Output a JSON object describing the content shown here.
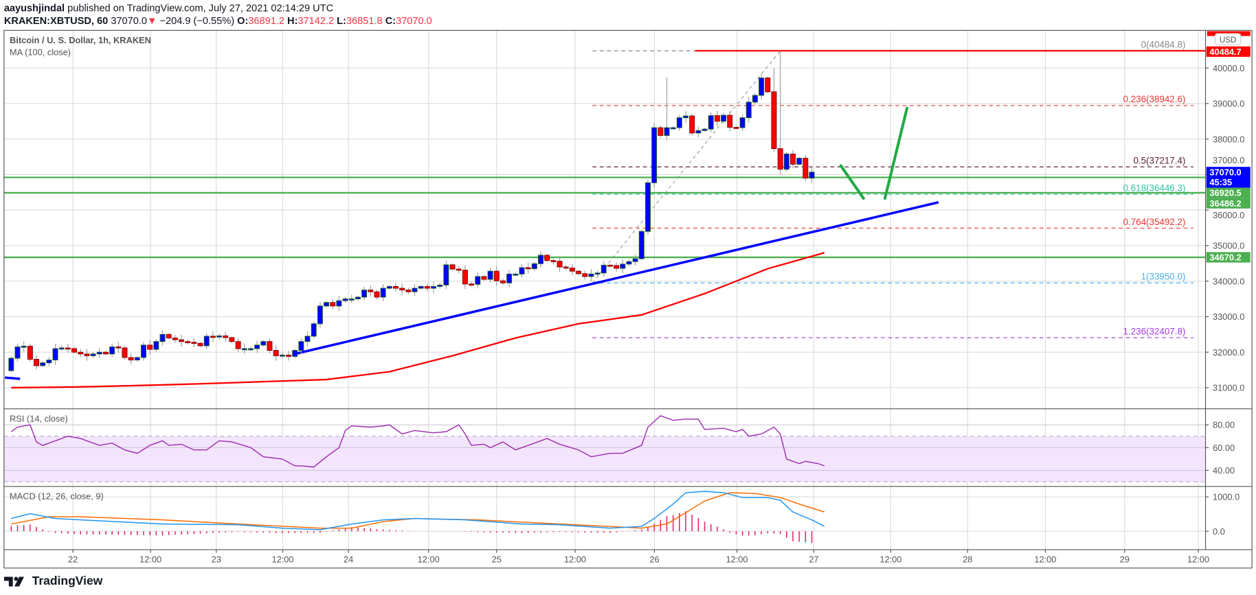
{
  "header": {
    "author": "aayushjindal",
    "published": "published on TradingView.com, July 27, 2021 02:14:29 UTC",
    "symbol": "KRAKEN:XBTUSD, 60",
    "last": "37070.0",
    "change": "−204.9 (−0.55%)",
    "o_label": "O:",
    "o": "36891.2",
    "h_label": "H:",
    "h": "37142.2",
    "l_label": "L:",
    "l": "36851.8",
    "c_label": "C:",
    "c": "37070.0",
    "down_icon": "▼"
  },
  "legend": {
    "title": "Bitcoin / U. S. Dollar, 1h, KRAKEN",
    "ma": "MA (100, close)",
    "rsi": "RSI (14, close)",
    "macd": "MACD (12, 26, close, 9)"
  },
  "price_axis": {
    "currency": "USD",
    "ticks": [
      "40000.0",
      "39000.0",
      "38000.0",
      "37000.0",
      "36000.0",
      "35000.0",
      "34000.0",
      "33000.0",
      "32000.0",
      "31000.0"
    ],
    "badges": [
      {
        "value": "40484.7",
        "color": "#ff0000"
      },
      {
        "value": "37070.0",
        "sub": "45:35",
        "color": "#0000ff"
      },
      {
        "value": "36920.5",
        "color": "#4caf50"
      },
      {
        "value": "36486.2",
        "color": "#4caf50"
      },
      {
        "value": "34670.2",
        "color": "#4caf50"
      }
    ]
  },
  "rsi_axis": {
    "ticks": [
      "80.00",
      "60.00",
      "40.00"
    ]
  },
  "macd_axis": {
    "ticks": [
      "1000.0",
      "0.0"
    ]
  },
  "time_axis": {
    "labels": [
      "22",
      "12:00",
      "23",
      "12:00",
      "24",
      "12:00",
      "25",
      "12:00",
      "26",
      "12:00",
      "27",
      "12:00",
      "28",
      "12:00",
      "29",
      "12:00"
    ]
  },
  "footer": {
    "brand": "TradingView"
  },
  "chart_data": {
    "type": "candlestick",
    "title": "Bitcoin / U. S. Dollar, 1h, KRAKEN",
    "interval": "1h",
    "ylim": [
      30500,
      41200
    ],
    "first_open": 31480,
    "closes": [
      31830,
      32150,
      32170,
      31800,
      31620,
      31700,
      31780,
      32100,
      32120,
      32100,
      32000,
      31950,
      31900,
      31950,
      32000,
      31950,
      32150,
      32120,
      31850,
      31780,
      31850,
      32200,
      32080,
      32300,
      32500,
      32400,
      32350,
      32300,
      32280,
      32250,
      32180,
      32450,
      32430,
      32460,
      32410,
      32300,
      32100,
      32100,
      32100,
      32200,
      32300,
      32050,
      31900,
      31920,
      31880,
      32050,
      32300,
      32450,
      32800,
      33300,
      33400,
      33300,
      33450,
      33500,
      33500,
      33550,
      33750,
      33700,
      33550,
      33800,
      33850,
      33800,
      33750,
      33700,
      33800,
      33850,
      33800,
      33850,
      33890,
      34460,
      34340,
      34310,
      33920,
      33910,
      34130,
      34050,
      34280,
      34010,
      33950,
      34200,
      34200,
      34380,
      34350,
      34490,
      34730,
      34580,
      34560,
      34400,
      34370,
      34280,
      34210,
      34130,
      34200,
      34230,
      34450,
      34440,
      34360,
      34480,
      34550,
      34630,
      35400,
      36770,
      38320,
      38100,
      38320,
      38320,
      38600,
      38650,
      38170,
      38240,
      38280,
      38660,
      38500,
      38670,
      38330,
      38320,
      38600,
      39040,
      39230,
      39720,
      39330,
      37730,
      37150,
      37580,
      37290,
      37460,
      36900,
      37070
    ],
    "high_overrides": {
      "104": 39740,
      "121": 39990,
      "122": 40484.8
    },
    "ma100": [
      [
        0,
        31000
      ],
      [
        10,
        31020
      ],
      [
        20,
        31060
      ],
      [
        30,
        31110
      ],
      [
        40,
        31170
      ],
      [
        50,
        31230
      ],
      [
        60,
        31450
      ],
      [
        70,
        31900
      ],
      [
        80,
        32400
      ],
      [
        90,
        32800
      ],
      [
        100,
        33050
      ],
      [
        110,
        33650
      ],
      [
        120,
        34350
      ],
      [
        129,
        34800
      ]
    ],
    "horizontal_lines": [
      {
        "price": 36920.5,
        "color": "#4caf50"
      },
      {
        "price": 36486.2,
        "color": "#4caf50"
      },
      {
        "price": 34670.2,
        "color": "#4caf50"
      }
    ],
    "resistance_line": {
      "price": 40484.7,
      "from_index": 108.5,
      "color": "#ff0000"
    },
    "trendline": {
      "from": [
        45.2,
        31960
      ],
      "to": [
        147.1,
        36220
      ],
      "color": "#0000ff"
    },
    "trendline_stub": {
      "from": [
        -1,
        31285
      ],
      "to": [
        1.4,
        31250
      ],
      "color": "#0000ff"
    },
    "projection": [
      {
        "from": [
          131.6,
          37250
        ],
        "to": [
          135.2,
          36330
        ]
      },
      {
        "from": [
          138.6,
          36330
        ],
        "to": [
          142.1,
          38870
        ]
      }
    ],
    "projection_color": "#22aa44",
    "fib": {
      "from_index": 92.2,
      "swing": [
        [
          92.2,
          33950
        ],
        [
          122,
          40484.8
        ]
      ],
      "levels": [
        {
          "label": "0(40484.8)",
          "price": 40484.8,
          "color": "#888888"
        },
        {
          "label": "0.236(38942.6)",
          "price": 38942.6,
          "color": "#e53935"
        },
        {
          "label": "0.5(37217.4)",
          "price": 37217.4,
          "color": "#5d1f35"
        },
        {
          "label": "0.618(36446.3)",
          "price": 36446.3,
          "color": "#2ec4a0"
        },
        {
          "label": "0.764(35492.2)",
          "price": 35492.2,
          "color": "#e53935"
        },
        {
          "label": "1(33950.0)",
          "price": 33950.0,
          "color": "#4aaee6"
        },
        {
          "label": "1.236(32407.8)",
          "price": 32407.8,
          "color": "#a23be0"
        }
      ]
    },
    "rsi": {
      "upper": 70,
      "lower": 30,
      "values": [
        [
          0,
          74
        ],
        [
          1,
          78
        ],
        [
          3,
          80
        ],
        [
          4,
          65
        ],
        [
          5,
          62
        ],
        [
          7,
          66
        ],
        [
          9,
          70
        ],
        [
          11,
          68
        ],
        [
          14,
          62
        ],
        [
          16,
          64
        ],
        [
          18,
          58
        ],
        [
          20,
          55
        ],
        [
          22,
          62
        ],
        [
          24,
          66
        ],
        [
          25,
          62
        ],
        [
          27,
          63
        ],
        [
          29,
          58
        ],
        [
          31,
          58
        ],
        [
          33,
          66
        ],
        [
          35,
          65
        ],
        [
          38,
          60
        ],
        [
          40,
          52
        ],
        [
          43,
          50
        ],
        [
          45,
          44
        ],
        [
          46,
          44
        ],
        [
          48,
          43
        ],
        [
          50,
          52
        ],
        [
          52,
          60
        ],
        [
          53,
          75
        ],
        [
          54,
          79
        ],
        [
          57,
          78
        ],
        [
          59,
          79
        ],
        [
          60,
          80
        ],
        [
          62,
          72
        ],
        [
          64,
          75
        ],
        [
          67,
          73
        ],
        [
          69,
          74
        ],
        [
          71,
          80
        ],
        [
          72,
          72
        ],
        [
          73,
          62
        ],
        [
          75,
          63
        ],
        [
          76,
          60
        ],
        [
          78,
          65
        ],
        [
          80,
          58
        ],
        [
          82,
          62
        ],
        [
          85,
          68
        ],
        [
          87,
          63
        ],
        [
          90,
          58
        ],
        [
          92,
          52
        ],
        [
          95,
          55
        ],
        [
          97,
          55
        ],
        [
          100,
          62
        ],
        [
          101,
          78
        ],
        [
          103,
          88
        ],
        [
          105,
          84
        ],
        [
          107,
          85
        ],
        [
          109,
          85
        ],
        [
          110,
          76
        ],
        [
          113,
          77
        ],
        [
          115,
          74
        ],
        [
          116,
          76
        ],
        [
          117,
          70
        ],
        [
          119,
          72
        ],
        [
          121,
          78
        ],
        [
          122,
          72
        ],
        [
          123,
          50
        ],
        [
          125,
          46
        ],
        [
          126,
          48
        ],
        [
          128,
          46
        ],
        [
          129,
          44
        ]
      ]
    },
    "macd": {
      "macd_color": "#2196f3",
      "signal_color": "#ff6d00",
      "hist_color": "#e91e63",
      "macd": [
        [
          0,
          370
        ],
        [
          3,
          510
        ],
        [
          7,
          370
        ],
        [
          11,
          330
        ],
        [
          24,
          210
        ],
        [
          36,
          190
        ],
        [
          43,
          90
        ],
        [
          49,
          45
        ],
        [
          54,
          210
        ],
        [
          59,
          330
        ],
        [
          64,
          370
        ],
        [
          72,
          330
        ],
        [
          81,
          210
        ],
        [
          87,
          190
        ],
        [
          95,
          90
        ],
        [
          100,
          140
        ],
        [
          102,
          370
        ],
        [
          105,
          790
        ],
        [
          107,
          1120
        ],
        [
          110,
          1160
        ],
        [
          113,
          1120
        ],
        [
          116,
          980
        ],
        [
          120,
          980
        ],
        [
          122,
          900
        ],
        [
          124,
          560
        ],
        [
          127,
          330
        ],
        [
          129,
          140
        ]
      ],
      "signal": [
        [
          0,
          210
        ],
        [
          6,
          420
        ],
        [
          11,
          420
        ],
        [
          24,
          330
        ],
        [
          36,
          210
        ],
        [
          49,
          90
        ],
        [
          54,
          90
        ],
        [
          59,
          280
        ],
        [
          64,
          370
        ],
        [
          74,
          330
        ],
        [
          87,
          210
        ],
        [
          95,
          140
        ],
        [
          100,
          90
        ],
        [
          104,
          210
        ],
        [
          108,
          650
        ],
        [
          110,
          880
        ],
        [
          114,
          1120
        ],
        [
          118,
          1100
        ],
        [
          122,
          980
        ],
        [
          125,
          790
        ],
        [
          129,
          560
        ]
      ]
    },
    "colors": {
      "up": "#0000ff",
      "down": "#ff0000",
      "up_border": "#1b5e20",
      "down_border": "#7f0000",
      "ma": "#ff0000",
      "rsi": "#9c27b0",
      "rsi_band": "#f3e5fd"
    }
  }
}
